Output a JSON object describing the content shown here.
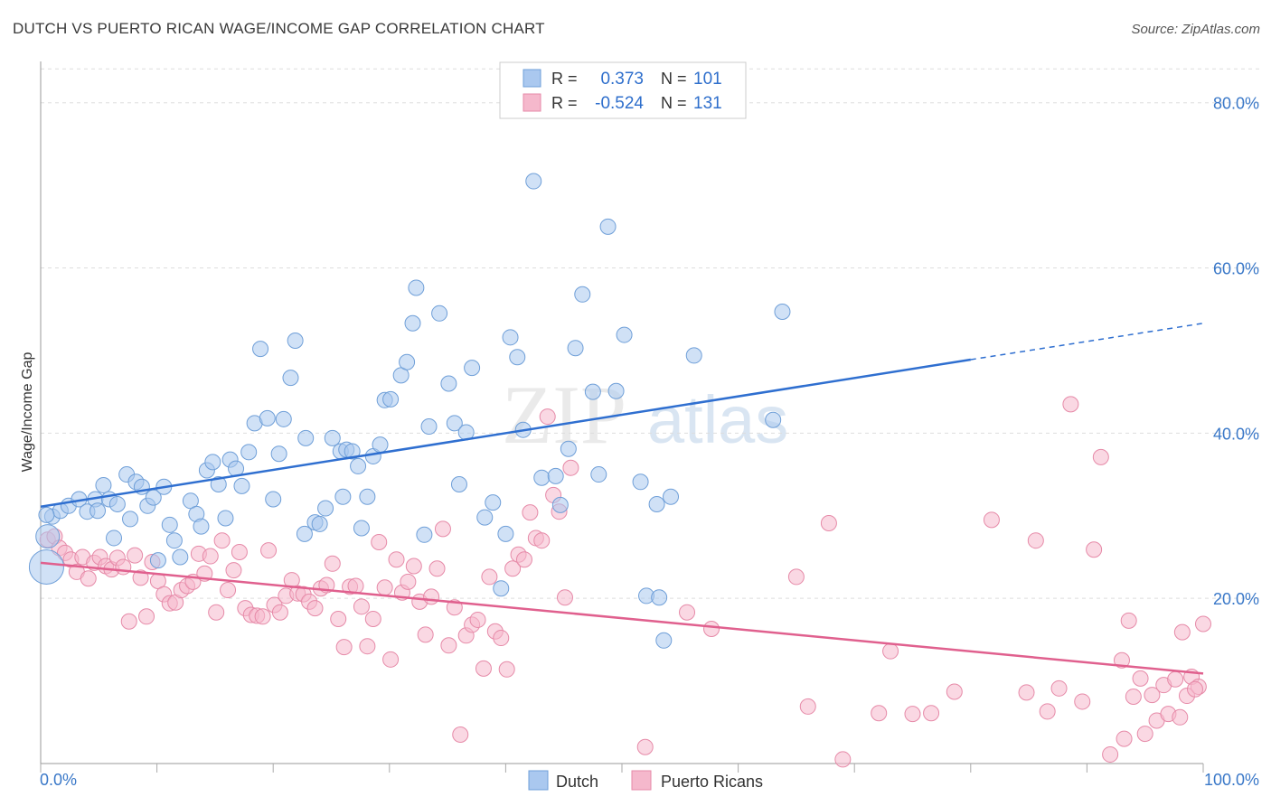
{
  "title": "DUTCH VS PUERTO RICAN WAGE/INCOME GAP CORRELATION CHART",
  "source": "Source: ZipAtlas.com",
  "watermark": {
    "zip": "ZIP",
    "atlas": "atlas"
  },
  "colors": {
    "dutch_fill": "#aac8ef",
    "dutch_stroke": "#6f9fd8",
    "dutch_line": "#2f6fd0",
    "pr_fill": "#f5b8cc",
    "pr_stroke": "#e68aa8",
    "pr_line": "#e0608e",
    "tick_label": "#3a78c8",
    "grid": "#dddddd"
  },
  "legend": {
    "rows": [
      {
        "r_label": "R =",
        "r_value": "0.373",
        "n_label": "N =",
        "n_value": "101"
      },
      {
        "r_label": "R =",
        "r_value": "-0.524",
        "n_label": "N =",
        "n_value": "131"
      }
    ]
  },
  "bottom_legend": [
    "Dutch",
    "Puerto Ricans"
  ],
  "chart_data": {
    "type": "scatter",
    "title": "DUTCH VS PUERTO RICAN WAGE/INCOME GAP CORRELATION CHART",
    "xlabel": "",
    "ylabel": "Wage/Income Gap",
    "xlim": [
      0,
      100
    ],
    "ylim": [
      0,
      85
    ],
    "x_tick_labels": [
      "0.0%",
      "100.0%"
    ],
    "y_ticks": [
      20,
      40,
      60,
      80
    ],
    "y_tick_labels": [
      "20.0%",
      "40.0%",
      "60.0%",
      "80.0%"
    ],
    "grid": true,
    "legend_position": "top-center",
    "series": [
      {
        "name": "Dutch",
        "r": 0.373,
        "n": 101,
        "trend": {
          "x0": 0,
          "y0": 31.1,
          "x1": 80,
          "y1": 48.9,
          "dash_to_x": 100,
          "dash_to_y": 53.3
        },
        "points": [
          [
            0.5,
            23.8,
            3
          ],
          [
            0.6,
            27.5,
            2
          ],
          [
            1.0,
            29.9,
            1
          ],
          [
            1.7,
            30.6,
            1
          ],
          [
            2.4,
            31.2,
            1
          ],
          [
            3.3,
            32.0,
            1
          ],
          [
            4.0,
            30.5,
            1
          ],
          [
            4.7,
            32.0,
            1
          ],
          [
            4.9,
            30.6,
            1
          ],
          [
            5.4,
            33.7,
            1
          ],
          [
            5.9,
            32.0,
            1
          ],
          [
            6.3,
            27.3,
            1
          ],
          [
            6.6,
            31.4,
            1
          ],
          [
            7.4,
            35.0,
            1
          ],
          [
            7.7,
            29.6,
            1
          ],
          [
            8.2,
            34.1,
            1
          ],
          [
            8.7,
            33.5,
            1
          ],
          [
            9.2,
            31.2,
            1
          ],
          [
            9.7,
            32.2,
            1
          ],
          [
            10.1,
            24.6,
            1
          ],
          [
            10.6,
            33.5,
            1
          ],
          [
            11.1,
            28.9,
            1
          ],
          [
            11.5,
            27.0,
            1
          ],
          [
            12.0,
            25.0,
            1
          ],
          [
            12.9,
            31.8,
            1
          ],
          [
            13.4,
            30.2,
            1
          ],
          [
            13.8,
            28.7,
            1
          ],
          [
            14.3,
            35.5,
            1
          ],
          [
            14.8,
            36.5,
            1
          ],
          [
            15.3,
            33.8,
            1
          ],
          [
            15.9,
            29.7,
            1
          ],
          [
            16.3,
            36.8,
            1
          ],
          [
            16.8,
            35.7,
            1
          ],
          [
            17.3,
            33.6,
            1
          ],
          [
            17.9,
            37.7,
            1
          ],
          [
            18.4,
            41.2,
            1
          ],
          [
            18.9,
            50.2,
            1
          ],
          [
            19.5,
            41.8,
            1
          ],
          [
            20.0,
            32.0,
            1
          ],
          [
            20.5,
            37.5,
            1
          ],
          [
            20.9,
            41.7,
            1
          ],
          [
            21.5,
            46.7,
            1
          ],
          [
            21.9,
            51.2,
            1
          ],
          [
            22.7,
            27.8,
            1
          ],
          [
            22.8,
            39.4,
            1
          ],
          [
            23.6,
            29.2,
            1
          ],
          [
            24.0,
            29.0,
            1
          ],
          [
            24.5,
            30.9,
            1
          ],
          [
            25.1,
            39.4,
            1
          ],
          [
            25.8,
            37.8,
            1
          ],
          [
            26.0,
            32.3,
            1
          ],
          [
            26.3,
            38.0,
            1
          ],
          [
            26.8,
            37.8,
            1
          ],
          [
            27.3,
            36.0,
            1
          ],
          [
            27.6,
            28.5,
            1
          ],
          [
            28.1,
            32.3,
            1
          ],
          [
            28.6,
            37.2,
            1
          ],
          [
            29.2,
            38.6,
            1
          ],
          [
            29.6,
            44.0,
            1
          ],
          [
            30.1,
            44.1,
            1
          ],
          [
            31.0,
            47.0,
            1
          ],
          [
            31.5,
            48.6,
            1
          ],
          [
            32.0,
            53.3,
            1
          ],
          [
            32.3,
            57.6,
            1
          ],
          [
            33.0,
            27.7,
            1
          ],
          [
            33.4,
            40.8,
            1
          ],
          [
            34.3,
            54.5,
            1
          ],
          [
            35.1,
            46.0,
            1
          ],
          [
            35.6,
            41.2,
            1
          ],
          [
            36.0,
            33.8,
            1
          ],
          [
            36.6,
            40.1,
            1
          ],
          [
            37.1,
            47.9,
            1
          ],
          [
            38.2,
            29.8,
            1
          ],
          [
            38.9,
            31.6,
            1
          ],
          [
            39.6,
            21.2,
            1
          ],
          [
            40.0,
            27.8,
            1
          ],
          [
            40.4,
            51.6,
            1
          ],
          [
            41.0,
            49.2,
            1
          ],
          [
            41.5,
            40.4,
            1
          ],
          [
            42.4,
            70.5,
            1
          ],
          [
            43.1,
            34.6,
            1
          ],
          [
            44.3,
            34.8,
            1
          ],
          [
            44.7,
            31.3,
            1
          ],
          [
            45.4,
            38.1,
            1
          ],
          [
            46.0,
            50.3,
            1
          ],
          [
            46.6,
            56.8,
            1
          ],
          [
            47.5,
            45.0,
            1
          ],
          [
            48.0,
            35.0,
            1
          ],
          [
            48.8,
            65.0,
            1
          ],
          [
            49.5,
            45.1,
            1
          ],
          [
            50.2,
            51.9,
            1
          ],
          [
            51.6,
            34.1,
            1
          ],
          [
            52.1,
            20.3,
            1
          ],
          [
            53.0,
            31.4,
            1
          ],
          [
            53.2,
            20.1,
            1
          ],
          [
            53.6,
            14.9,
            1
          ],
          [
            54.2,
            32.3,
            1
          ],
          [
            56.2,
            49.4,
            1
          ],
          [
            63.0,
            41.6,
            1
          ],
          [
            63.8,
            54.7,
            1
          ],
          [
            0.5,
            30.1,
            1
          ]
        ]
      },
      {
        "name": "Puerto Ricans",
        "r": -0.524,
        "n": 131,
        "trend": {
          "x0": 0,
          "y0": 24.3,
          "x1": 100,
          "y1": 10.9
        },
        "points": [
          [
            0.6,
            27.1,
            1
          ],
          [
            1.2,
            27.5,
            1
          ],
          [
            1.6,
            26.1,
            1
          ],
          [
            2.1,
            25.5,
            1
          ],
          [
            2.6,
            24.7,
            1
          ],
          [
            3.1,
            23.2,
            1
          ],
          [
            3.6,
            25.0,
            1
          ],
          [
            4.1,
            22.4,
            1
          ],
          [
            4.6,
            24.3,
            1
          ],
          [
            5.1,
            25.0,
            1
          ],
          [
            5.6,
            23.9,
            1
          ],
          [
            6.1,
            23.5,
            1
          ],
          [
            6.6,
            24.9,
            1
          ],
          [
            7.1,
            23.8,
            1
          ],
          [
            7.6,
            17.2,
            1
          ],
          [
            8.1,
            25.2,
            1
          ],
          [
            8.6,
            22.5,
            1
          ],
          [
            9.1,
            17.8,
            1
          ],
          [
            9.6,
            24.4,
            1
          ],
          [
            10.1,
            22.1,
            1
          ],
          [
            10.6,
            20.5,
            1
          ],
          [
            11.1,
            19.4,
            1
          ],
          [
            11.6,
            19.5,
            1
          ],
          [
            12.1,
            21.0,
            1
          ],
          [
            12.6,
            21.5,
            1
          ],
          [
            13.1,
            22.0,
            1
          ],
          [
            13.6,
            25.4,
            1
          ],
          [
            14.1,
            23.0,
            1
          ],
          [
            14.6,
            25.1,
            1
          ],
          [
            15.1,
            18.3,
            1
          ],
          [
            15.6,
            27.0,
            1
          ],
          [
            16.1,
            21.0,
            1
          ],
          [
            16.6,
            23.4,
            1
          ],
          [
            17.1,
            25.6,
            1
          ],
          [
            17.6,
            18.8,
            1
          ],
          [
            18.1,
            18.0,
            1
          ],
          [
            18.6,
            17.9,
            1
          ],
          [
            19.1,
            17.8,
            1
          ],
          [
            19.6,
            25.8,
            1
          ],
          [
            20.1,
            19.2,
            1
          ],
          [
            20.6,
            18.3,
            1
          ],
          [
            21.1,
            20.3,
            1
          ],
          [
            21.6,
            22.2,
            1
          ],
          [
            22.1,
            20.6,
            1
          ],
          [
            22.6,
            20.5,
            1
          ],
          [
            23.1,
            19.6,
            1
          ],
          [
            23.6,
            18.8,
            1
          ],
          [
            24.1,
            21.2,
            1
          ],
          [
            24.6,
            21.6,
            1
          ],
          [
            25.1,
            24.2,
            1
          ],
          [
            25.6,
            17.5,
            1
          ],
          [
            26.1,
            14.1,
            1
          ],
          [
            26.6,
            21.4,
            1
          ],
          [
            27.1,
            21.5,
            1
          ],
          [
            27.6,
            19.0,
            1
          ],
          [
            28.1,
            14.2,
            1
          ],
          [
            28.6,
            17.5,
            1
          ],
          [
            29.1,
            26.8,
            1
          ],
          [
            29.6,
            21.3,
            1
          ],
          [
            30.1,
            12.6,
            1
          ],
          [
            30.6,
            24.7,
            1
          ],
          [
            31.1,
            20.7,
            1
          ],
          [
            31.6,
            22.0,
            1
          ],
          [
            32.1,
            23.9,
            1
          ],
          [
            32.6,
            19.6,
            1
          ],
          [
            33.1,
            15.6,
            1
          ],
          [
            33.6,
            20.2,
            1
          ],
          [
            34.1,
            23.6,
            1
          ],
          [
            34.6,
            28.4,
            1
          ],
          [
            35.1,
            14.3,
            1
          ],
          [
            35.6,
            18.9,
            1
          ],
          [
            36.1,
            3.5,
            1
          ],
          [
            36.6,
            15.5,
            1
          ],
          [
            37.1,
            16.8,
            1
          ],
          [
            37.6,
            17.4,
            1
          ],
          [
            38.1,
            11.5,
            1
          ],
          [
            38.6,
            22.6,
            1
          ],
          [
            39.1,
            16.0,
            1
          ],
          [
            39.6,
            15.2,
            1
          ],
          [
            40.1,
            11.4,
            1
          ],
          [
            40.6,
            23.6,
            1
          ],
          [
            41.1,
            25.3,
            1
          ],
          [
            41.6,
            24.7,
            1
          ],
          [
            42.1,
            30.4,
            1
          ],
          [
            42.6,
            27.3,
            1
          ],
          [
            43.1,
            27.0,
            1
          ],
          [
            43.6,
            42.0,
            1
          ],
          [
            44.1,
            32.5,
            1
          ],
          [
            44.6,
            30.5,
            1
          ],
          [
            45.1,
            20.1,
            1
          ],
          [
            45.6,
            35.8,
            1
          ],
          [
            52.0,
            2.0,
            1
          ],
          [
            55.6,
            18.3,
            1
          ],
          [
            57.7,
            16.3,
            1
          ],
          [
            65.0,
            22.6,
            1
          ],
          [
            66.0,
            6.9,
            1
          ],
          [
            67.8,
            29.1,
            1
          ],
          [
            69.0,
            0.5,
            1
          ],
          [
            72.1,
            6.1,
            1
          ],
          [
            73.1,
            13.6,
            1
          ],
          [
            75.0,
            6.0,
            1
          ],
          [
            76.6,
            6.1,
            1
          ],
          [
            78.6,
            8.7,
            1
          ],
          [
            81.8,
            29.5,
            1
          ],
          [
            84.8,
            8.6,
            1
          ],
          [
            85.6,
            27.0,
            1
          ],
          [
            86.6,
            6.3,
            1
          ],
          [
            87.6,
            9.1,
            1
          ],
          [
            88.6,
            43.5,
            1
          ],
          [
            89.6,
            7.5,
            1
          ],
          [
            90.6,
            25.9,
            1
          ],
          [
            91.2,
            37.1,
            1
          ],
          [
            92.0,
            1.1,
            1
          ],
          [
            93.0,
            12.5,
            1
          ],
          [
            93.6,
            17.3,
            1
          ],
          [
            94.6,
            10.3,
            1
          ],
          [
            95.6,
            8.3,
            1
          ],
          [
            96.6,
            9.5,
            1
          ],
          [
            97.6,
            10.2,
            1
          ],
          [
            98.6,
            8.2,
            1
          ],
          [
            99.0,
            10.5,
            1
          ],
          [
            99.6,
            9.3,
            1
          ],
          [
            100.0,
            16.9,
            1
          ],
          [
            94.0,
            8.1,
            1
          ],
          [
            95.0,
            3.6,
            1
          ],
          [
            96.0,
            5.2,
            1
          ],
          [
            97.0,
            6.0,
            1
          ],
          [
            98.0,
            5.6,
            1
          ],
          [
            99.3,
            9.0,
            1
          ],
          [
            98.2,
            15.9,
            1
          ],
          [
            93.2,
            3.0,
            1
          ]
        ]
      }
    ]
  }
}
